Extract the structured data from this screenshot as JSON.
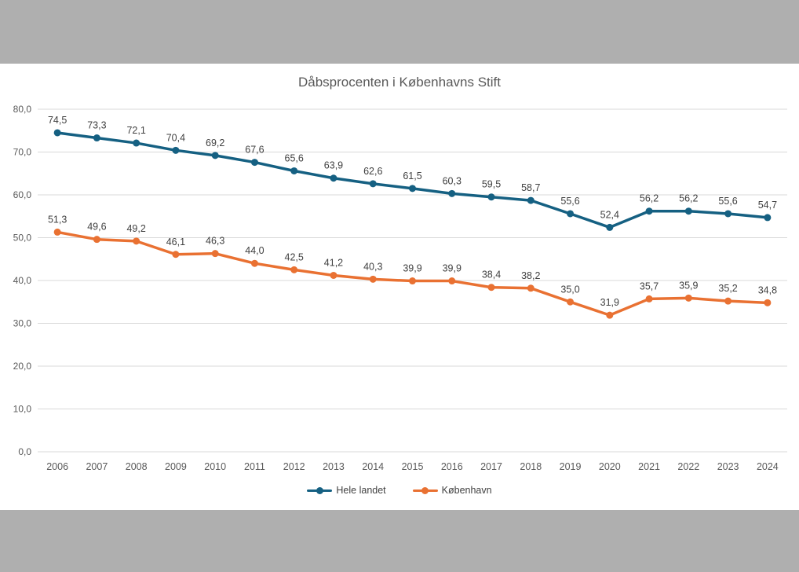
{
  "page": {
    "surround_color": "#AFAFAF",
    "slide_color": "#FFFFFF"
  },
  "chart": {
    "title": "Dåbsprocenten i Københavns Stift",
    "title_color": "#595959"
  },
  "chart_data": {
    "type": "line",
    "title": "Dåbsprocenten i Københavns Stift",
    "categories": [
      "2006",
      "2007",
      "2008",
      "2009",
      "2010",
      "2011",
      "2012",
      "2013",
      "2014",
      "2015",
      "2016",
      "2017",
      "2018",
      "2019",
      "2020",
      "2021",
      "2022",
      "2023",
      "2024"
    ],
    "series": [
      {
        "name": "Hele landet",
        "color": "#156082",
        "values": [
          74.5,
          73.3,
          72.1,
          70.4,
          69.2,
          67.6,
          65.6,
          63.9,
          62.6,
          61.5,
          60.3,
          59.5,
          58.7,
          55.6,
          52.4,
          56.2,
          56.2,
          55.6,
          54.7
        ]
      },
      {
        "name": "København",
        "color": "#E97132",
        "values": [
          51.3,
          49.6,
          49.2,
          46.1,
          46.3,
          44.0,
          42.5,
          41.2,
          40.3,
          39.9,
          39.9,
          38.4,
          38.2,
          35.0,
          31.9,
          35.7,
          35.9,
          35.2,
          34.8
        ]
      }
    ],
    "xlabel": "",
    "ylabel": "",
    "ylim": [
      0,
      80
    ],
    "ytick_step": 10,
    "decimal_separator": ",",
    "grid": true,
    "gridline_color": "#D9D9D9",
    "data_labels": true,
    "data_label_color": "#404040",
    "axis_label_color": "#595959",
    "legend_position": "bottom"
  }
}
